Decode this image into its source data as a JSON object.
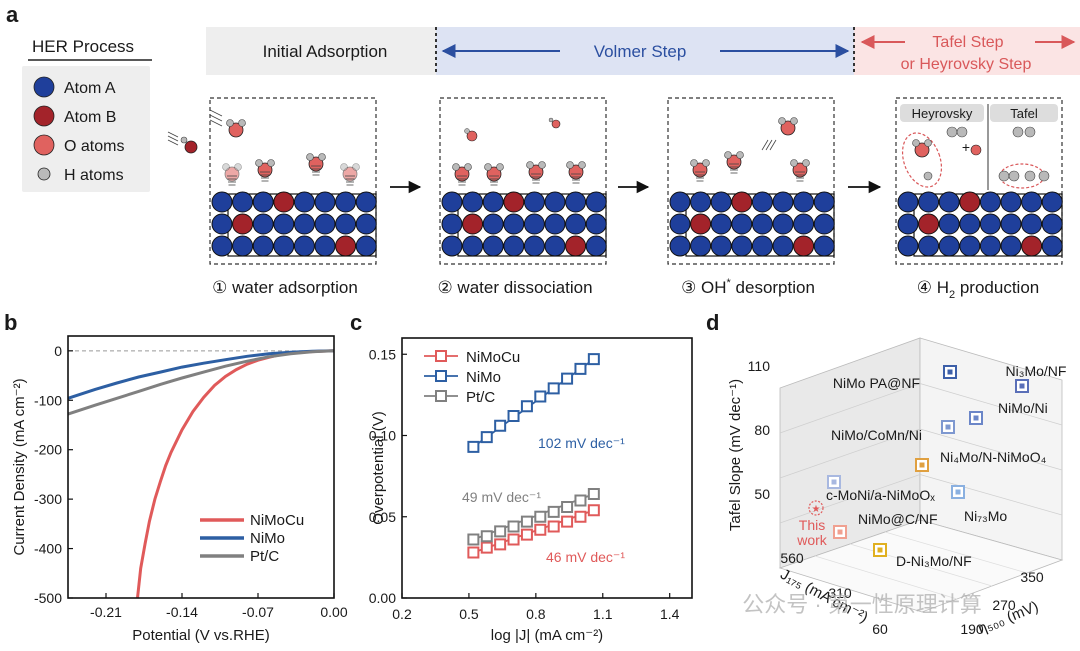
{
  "panel_labels": {
    "a": "a",
    "b": "b",
    "c": "c",
    "d": "d"
  },
  "panel_a": {
    "legend_title": "HER Process",
    "legend_items": [
      {
        "label": "Atom A",
        "color": "#1f3f9b"
      },
      {
        "label": "Atom B",
        "color": "#a3232a"
      },
      {
        "label": "O atoms",
        "color": "#e0625f"
      },
      {
        "label": "H atoms",
        "color": "#b9b9b9"
      }
    ],
    "band": {
      "initial": "Initial Adsorption",
      "volmer": "Volmer Step",
      "tafel_line1": "Tafel Step",
      "tafel_line2": "or Heyrovsky Step"
    },
    "steps": [
      "① water adsorption",
      "② water dissociation",
      "③ OH",
      "④ H"
    ],
    "step3_sup": "*",
    "step3_rest": " desorption",
    "step4_sub": "2",
    "step4_rest": " production",
    "sub_labels": {
      "heyrovsky": "Heyrovsky",
      "tafel": "Tafel",
      "plus": "+"
    }
  },
  "chart_data": [
    {
      "type": "line",
      "panel": "b",
      "xlabel": "Potential (V vs.RHE)",
      "ylabel": "Current Density (mA cm⁻²)",
      "xlim": [
        -0.245,
        0.0
      ],
      "ylim": [
        -500,
        30
      ],
      "xticks": [
        "-0.21",
        "-0.14",
        "-0.07",
        "0.00"
      ],
      "yticks": [
        "0",
        "-100",
        "-200",
        "-300",
        "-400",
        "-500"
      ],
      "series": [
        {
          "name": "NiMoCu",
          "color": "#e05a5a",
          "x": [
            -0.181,
            -0.178,
            -0.174,
            -0.17,
            -0.165,
            -0.16,
            -0.155,
            -0.15,
            -0.14,
            -0.13,
            -0.12,
            -0.11,
            -0.1,
            -0.09,
            -0.08,
            -0.07,
            -0.06,
            -0.05,
            -0.04,
            -0.03,
            -0.02,
            -0.01,
            0.0
          ],
          "y": [
            -500,
            -440,
            -390,
            -345,
            -300,
            -265,
            -232,
            -205,
            -160,
            -123,
            -94,
            -70,
            -52,
            -38,
            -27,
            -19,
            -13,
            -8,
            -5,
            -3,
            -1.5,
            -0.5,
            0
          ]
        },
        {
          "name": "NiMo",
          "color": "#2d5fa3",
          "x": [
            -0.245,
            -0.22,
            -0.2,
            -0.18,
            -0.16,
            -0.14,
            -0.12,
            -0.1,
            -0.08,
            -0.06,
            -0.04,
            -0.02,
            0.0
          ],
          "y": [
            -96,
            -78,
            -65,
            -53,
            -43,
            -33,
            -25,
            -18,
            -11,
            -6,
            -3,
            -1,
            0
          ]
        },
        {
          "name": "Pt/C",
          "color": "#808080",
          "x": [
            -0.245,
            -0.22,
            -0.2,
            -0.18,
            -0.16,
            -0.14,
            -0.12,
            -0.1,
            -0.08,
            -0.06,
            -0.04,
            -0.02,
            0.0
          ],
          "y": [
            -128,
            -110,
            -96,
            -82,
            -68,
            -55,
            -43,
            -31,
            -21,
            -12,
            -6,
            -2,
            0
          ]
        }
      ]
    },
    {
      "type": "scatter",
      "panel": "c",
      "xlabel": "log |J| (mA cm⁻²)",
      "ylabel": "Overpotential (V)",
      "xlim": [
        0.2,
        1.5
      ],
      "ylim": [
        0.0,
        0.16
      ],
      "xticks": [
        "0.2",
        "0.5",
        "0.8",
        "1.1",
        "1.4"
      ],
      "yticks": [
        "0.00",
        "0.05",
        "0.10",
        "0.15"
      ],
      "annotations": [
        "102 mV dec⁻¹",
        "49 mV dec⁻¹",
        "46 mV dec⁻¹"
      ],
      "series": [
        {
          "name": "NiMoCu",
          "color": "#e05a5a",
          "x": [
            0.52,
            0.58,
            0.64,
            0.7,
            0.76,
            0.82,
            0.88,
            0.94,
            1.0,
            1.06
          ],
          "y": [
            0.028,
            0.031,
            0.033,
            0.036,
            0.039,
            0.042,
            0.044,
            0.047,
            0.05,
            0.054
          ]
        },
        {
          "name": "NiMo",
          "color": "#2d5fa3",
          "x": [
            0.52,
            0.58,
            0.64,
            0.7,
            0.76,
            0.82,
            0.88,
            0.94,
            1.0,
            1.06
          ],
          "y": [
            0.093,
            0.099,
            0.106,
            0.112,
            0.118,
            0.124,
            0.129,
            0.135,
            0.141,
            0.147
          ]
        },
        {
          "name": "Pt/C",
          "color": "#808080",
          "x": [
            0.52,
            0.58,
            0.64,
            0.7,
            0.76,
            0.82,
            0.88,
            0.94,
            1.0,
            1.06
          ],
          "y": [
            0.036,
            0.038,
            0.041,
            0.044,
            0.047,
            0.05,
            0.053,
            0.056,
            0.06,
            0.064
          ]
        }
      ]
    },
    {
      "type": "scatter",
      "panel": "d",
      "zlabel": "Tafel Slope (mV dec⁻¹)",
      "xlabel": "J₁₇₅ (mA cm⁻²)",
      "ylabel": "η₅₀₀ (mV)",
      "zticks": [
        "110",
        "80",
        "50"
      ],
      "jticks": [
        "560",
        "310",
        "60"
      ],
      "etaticks": [
        "350",
        "270",
        "190"
      ],
      "points": [
        {
          "label": "NiMo PA@NF",
          "color": "#3d5fa8"
        },
        {
          "label": "Ni₃Mo/NF",
          "color": "#5a6fb8"
        },
        {
          "label": "NiMo/Ni",
          "color": "#6b86c8"
        },
        {
          "label": "NiMo/CoMn/Ni",
          "color": "#7e98d0"
        },
        {
          "label": "Ni₄Mo/N-NiMoO₄",
          "color": "#e0a040"
        },
        {
          "label": "c-MoNi/a-NiMoOₓ",
          "color": "#a8b8e0"
        },
        {
          "label": "Ni₇₃Mo",
          "color": "#8ab0e0"
        },
        {
          "label": "NiMo@C/NF",
          "color": "#f0a090"
        },
        {
          "label": "D-Ni₃Mo/NF",
          "color": "#e0b020"
        }
      ],
      "this_work": {
        "line1": "This",
        "line2": "work",
        "color": "#e05a5a"
      }
    }
  ],
  "watermark": "公众号 · 第一性原理计算"
}
